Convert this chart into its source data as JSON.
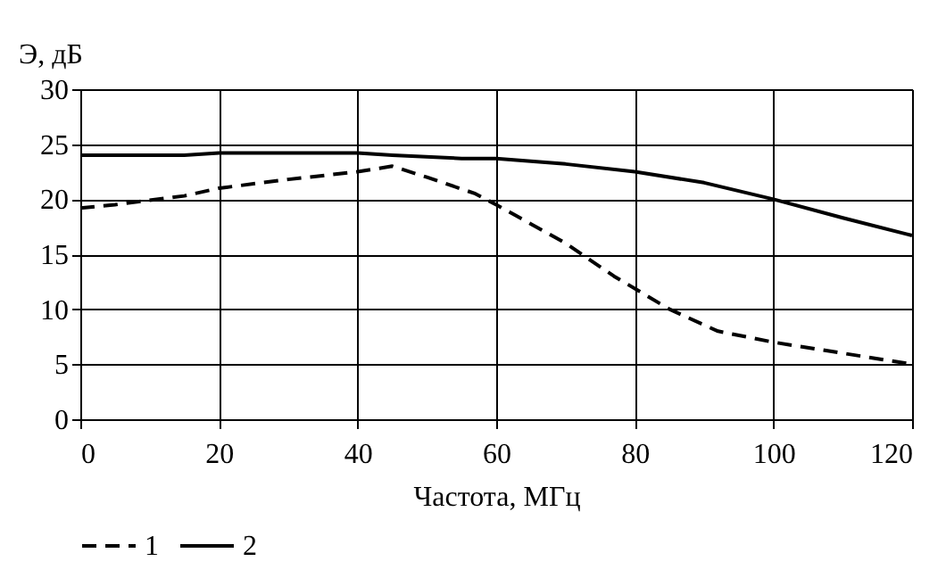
{
  "chart_data": {
    "type": "line",
    "xlabel": "Частота, МГц",
    "ylabel": "Э, дБ",
    "series": [
      {
        "name": "1",
        "color": "#000000",
        "line_style": "dashed",
        "x": [
          0,
          5,
          15,
          20,
          30,
          40,
          45,
          50,
          57,
          60,
          70,
          77,
          85,
          92,
          100,
          110,
          120
        ],
        "values": [
          19.2,
          19.5,
          20.3,
          21,
          21.8,
          22.5,
          23,
          22,
          20.5,
          19.5,
          16,
          13,
          10,
          8,
          7,
          6,
          5
        ]
      },
      {
        "name": "2",
        "color": "#000000",
        "line_style": "solid",
        "x": [
          0,
          15,
          20,
          30,
          40,
          45,
          55,
          60,
          70,
          80,
          90,
          100,
          110,
          120
        ],
        "values": [
          24,
          24,
          24.2,
          24.2,
          24.2,
          24,
          23.7,
          23.7,
          23.2,
          22.5,
          21.5,
          20,
          18.3,
          16.7
        ]
      }
    ],
    "xlim": [
      0,
      120
    ],
    "xticks": [
      0,
      20,
      40,
      60,
      80,
      100,
      120
    ],
    "ylim": [
      0,
      30
    ],
    "yticks": [
      0,
      5,
      10,
      15,
      20,
      25,
      30
    ],
    "grid": true,
    "legend": "bottom",
    "marker": "none"
  }
}
